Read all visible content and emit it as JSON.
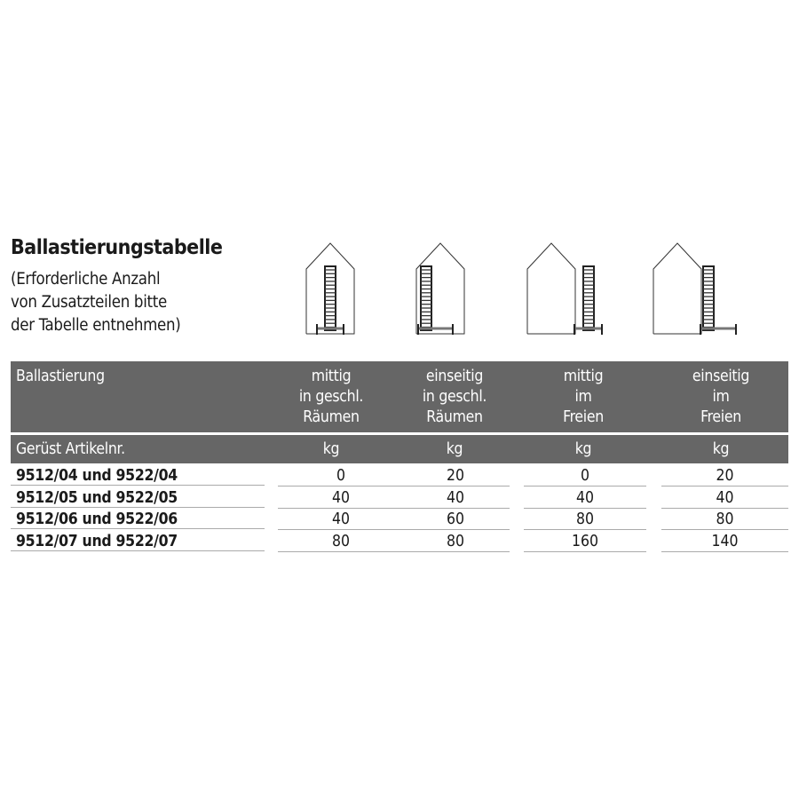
{
  "title": "Ballastierungstabelle",
  "subtitle": [
    "(Erforderliche Anzahl",
    "von Zusatzteilen bitte",
    "der Tabelle entnehmen)"
  ],
  "illustrations": [
    "ladder-centered-inside-house",
    "ladder-one-side-inside-house",
    "ladder-centered-outside",
    "ladder-one-side-outside"
  ],
  "table": {
    "header": {
      "first": "Ballastierung",
      "columns": [
        [
          "mittig",
          "in geschl.",
          "Räumen"
        ],
        [
          "einseitig",
          "in geschl.",
          "Räumen"
        ],
        [
          "mittig",
          "im",
          "Freien"
        ],
        [
          "einseitig",
          "im",
          "Freien"
        ]
      ]
    },
    "subheader": {
      "first": "Gerüst Artikelnr.",
      "units": [
        "kg",
        "kg",
        "kg",
        "kg"
      ]
    },
    "rows": [
      {
        "label": "9512/04 und 9522/04",
        "values": [
          "0",
          "20",
          "0",
          "20"
        ]
      },
      {
        "label": "9512/05 und 9522/05",
        "values": [
          "40",
          "40",
          "40",
          "40"
        ]
      },
      {
        "label": "9512/06 und 9522/06",
        "values": [
          "40",
          "60",
          "80",
          "80"
        ]
      },
      {
        "label": "9512/07 und 9522/07",
        "values": [
          "80",
          "80",
          "160",
          "140"
        ]
      }
    ]
  },
  "colors": {
    "header_bg": "#666666",
    "header_text": "#ffffff",
    "divider": "#aaaaaa"
  }
}
